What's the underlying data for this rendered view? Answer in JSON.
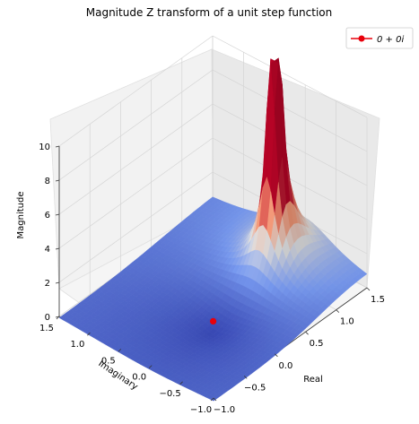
{
  "chart_data": {
    "type": "surface3d",
    "title": "Magnitude Z transform of a unit step function",
    "xlabel": "Real",
    "ylabel": "Imaginary",
    "zlabel": "Magnitude",
    "xlim": [
      -1.0,
      1.5
    ],
    "ylim": [
      -1.0,
      1.5
    ],
    "zlim": [
      0,
      10
    ],
    "x_ticks": [
      "−1.0",
      "−0.5",
      "0.0",
      "0.5",
      "1.0",
      "1.5"
    ],
    "y_ticks": [
      "−1.0",
      "−0.5",
      "0.0",
      "0.5",
      "1.0",
      "1.5"
    ],
    "z_ticks": [
      "0",
      "2",
      "4",
      "6",
      "8",
      "10"
    ],
    "surface_function": "|z / (z - 1)|",
    "pole": [
      1.0,
      0.0
    ],
    "grid": true,
    "colormap": "coolwarm",
    "legend": {
      "position": "top-right",
      "entries": [
        "0 + 0i"
      ]
    },
    "series": [
      {
        "name": "0 + 0i",
        "type": "point",
        "x": [
          0.0
        ],
        "y": [
          0.0
        ],
        "z": [
          0.0
        ],
        "color": "#e8000b"
      }
    ]
  }
}
